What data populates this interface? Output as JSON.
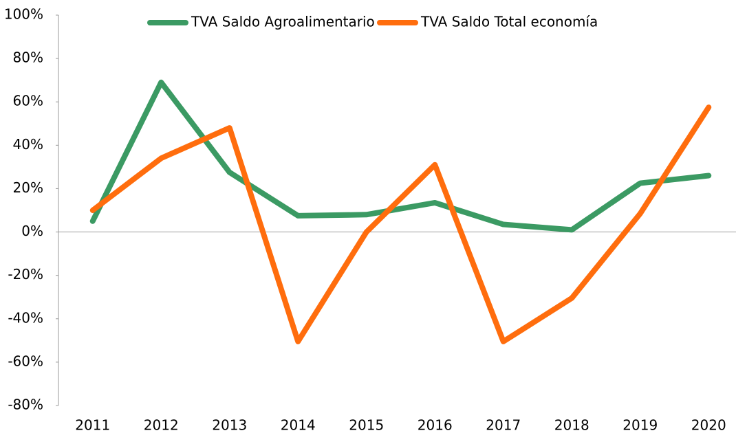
{
  "chart_data": {
    "type": "line",
    "categories": [
      "2011",
      "2012",
      "2013",
      "2014",
      "2015",
      "2016",
      "2017",
      "2018",
      "2019",
      "2020"
    ],
    "series": [
      {
        "name": "TVA Saldo Agroalimentario",
        "color": "#3b9a63",
        "values": [
          5,
          69,
          27.5,
          7.5,
          8,
          13.5,
          3.5,
          1,
          22.5,
          26
        ]
      },
      {
        "name": "TVA Saldo Total economía",
        "color": "#ff6d0d",
        "values": [
          10,
          34,
          48,
          -50.5,
          0,
          31,
          -50.5,
          -30.5,
          8.5,
          57.5
        ]
      }
    ],
    "ylim": [
      -80,
      100
    ],
    "yticks": [
      {
        "value": -80,
        "label": "-80%"
      },
      {
        "value": -60,
        "label": "-60%"
      },
      {
        "value": -40,
        "label": "-40%"
      },
      {
        "value": -20,
        "label": "-20%"
      },
      {
        "value": 0,
        "label": "0%"
      },
      {
        "value": 20,
        "label": "20%"
      },
      {
        "value": 40,
        "label": "40%"
      },
      {
        "value": 60,
        "label": "60%"
      },
      {
        "value": 80,
        "label": "80%"
      },
      {
        "value": 100,
        "label": "100%"
      }
    ],
    "legend": "top",
    "grid": false
  }
}
